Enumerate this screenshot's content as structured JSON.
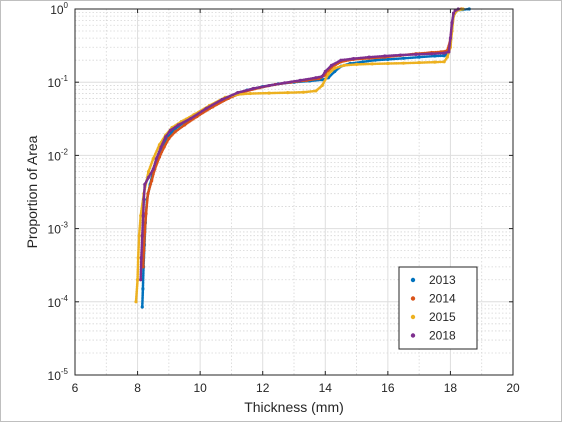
{
  "chart_data": {
    "type": "scatter",
    "title": "",
    "xlabel": "Thickness (mm)",
    "ylabel": "Proportion of Area",
    "xlim": [
      6,
      20
    ],
    "ylim": [
      1e-05,
      1
    ],
    "yscale": "log",
    "grid": true,
    "minor_grid": true,
    "legend_position": "lower-right",
    "x_ticks": [
      6,
      8,
      10,
      12,
      14,
      16,
      18,
      20
    ],
    "x_tick_labels": [
      "6",
      "8",
      "10",
      "12",
      "14",
      "16",
      "18",
      "20"
    ],
    "y_ticks": [
      1e-05,
      0.0001,
      0.001,
      0.01,
      0.1,
      1
    ],
    "y_tick_labels": [
      {
        "base": "10",
        "exp": "-5"
      },
      {
        "base": "10",
        "exp": "-4"
      },
      {
        "base": "10",
        "exp": "-3"
      },
      {
        "base": "10",
        "exp": "-2"
      },
      {
        "base": "10",
        "exp": "-1"
      },
      {
        "base": "10",
        "exp": "0"
      }
    ],
    "series": [
      {
        "name": "2013",
        "color": "#0072BD",
        "points": [
          [
            8.15,
            8.5e-05
          ],
          [
            8.17,
            0.00015
          ],
          [
            8.19,
            0.0003
          ],
          [
            8.22,
            0.0006
          ],
          [
            8.25,
            0.0012
          ],
          [
            8.3,
            0.0025
          ],
          [
            8.4,
            0.004
          ],
          [
            8.5,
            0.006
          ],
          [
            8.6,
            0.008
          ],
          [
            8.7,
            0.01
          ],
          [
            8.8,
            0.013
          ],
          [
            8.95,
            0.017
          ],
          [
            9.1,
            0.021
          ],
          [
            9.3,
            0.025
          ],
          [
            9.6,
            0.03
          ],
          [
            10.0,
            0.038
          ],
          [
            10.5,
            0.05
          ],
          [
            11.0,
            0.065
          ],
          [
            11.5,
            0.078
          ],
          [
            12.0,
            0.087
          ],
          [
            12.5,
            0.095
          ],
          [
            13.0,
            0.1
          ],
          [
            13.5,
            0.104
          ],
          [
            13.9,
            0.108
          ],
          [
            14.1,
            0.115
          ],
          [
            14.3,
            0.14
          ],
          [
            14.5,
            0.165
          ],
          [
            14.8,
            0.18
          ],
          [
            15.2,
            0.19
          ],
          [
            15.6,
            0.2
          ],
          [
            16.0,
            0.205
          ],
          [
            16.5,
            0.212
          ],
          [
            17.0,
            0.22
          ],
          [
            17.5,
            0.228
          ],
          [
            17.8,
            0.23
          ],
          [
            17.9,
            0.24
          ],
          [
            18.0,
            0.33
          ],
          [
            18.05,
            0.55
          ],
          [
            18.1,
            0.82
          ],
          [
            18.2,
            0.95
          ],
          [
            18.4,
            0.98
          ],
          [
            18.6,
            1.0
          ]
        ]
      },
      {
        "name": "2014",
        "color": "#D95319",
        "points": [
          [
            8.18,
            0.0003
          ],
          [
            8.2,
            0.0005
          ],
          [
            8.23,
            0.0009
          ],
          [
            8.27,
            0.0016
          ],
          [
            8.33,
            0.003
          ],
          [
            8.45,
            0.0045
          ],
          [
            8.55,
            0.0065
          ],
          [
            8.7,
            0.0095
          ],
          [
            8.85,
            0.013
          ],
          [
            9.0,
            0.017
          ],
          [
            9.2,
            0.021
          ],
          [
            9.5,
            0.026
          ],
          [
            9.9,
            0.034
          ],
          [
            10.4,
            0.046
          ],
          [
            10.9,
            0.06
          ],
          [
            11.4,
            0.074
          ],
          [
            11.9,
            0.084
          ],
          [
            12.4,
            0.093
          ],
          [
            12.9,
            0.1
          ],
          [
            13.4,
            0.106
          ],
          [
            13.8,
            0.112
          ],
          [
            14.0,
            0.125
          ],
          [
            14.2,
            0.16
          ],
          [
            14.5,
            0.19
          ],
          [
            14.9,
            0.205
          ],
          [
            15.4,
            0.212
          ],
          [
            15.9,
            0.22
          ],
          [
            16.4,
            0.232
          ],
          [
            16.9,
            0.245
          ],
          [
            17.4,
            0.255
          ],
          [
            17.7,
            0.26
          ],
          [
            17.9,
            0.27
          ],
          [
            18.0,
            0.38
          ],
          [
            18.05,
            0.6
          ],
          [
            18.1,
            0.85
          ],
          [
            18.2,
            0.96
          ],
          [
            18.35,
            1.0
          ]
        ]
      },
      {
        "name": "2015",
        "color": "#EDB120",
        "points": [
          [
            7.95,
            0.0001
          ],
          [
            8.0,
            0.0002
          ],
          [
            8.02,
            0.0004
          ],
          [
            8.05,
            0.0008
          ],
          [
            8.1,
            0.0015
          ],
          [
            8.2,
            0.003
          ],
          [
            8.35,
            0.006
          ],
          [
            8.5,
            0.009
          ],
          [
            8.7,
            0.014
          ],
          [
            8.9,
            0.019
          ],
          [
            9.1,
            0.024
          ],
          [
            9.4,
            0.029
          ],
          [
            9.8,
            0.036
          ],
          [
            10.3,
            0.048
          ],
          [
            10.8,
            0.062
          ],
          [
            11.2,
            0.068
          ],
          [
            11.6,
            0.07
          ],
          [
            12.2,
            0.071
          ],
          [
            12.8,
            0.072
          ],
          [
            13.3,
            0.073
          ],
          [
            13.7,
            0.076
          ],
          [
            13.9,
            0.09
          ],
          [
            14.1,
            0.13
          ],
          [
            14.3,
            0.155
          ],
          [
            14.6,
            0.17
          ],
          [
            15.0,
            0.175
          ],
          [
            15.5,
            0.178
          ],
          [
            16.0,
            0.18
          ],
          [
            16.5,
            0.182
          ],
          [
            17.0,
            0.185
          ],
          [
            17.5,
            0.188
          ],
          [
            17.8,
            0.19
          ],
          [
            17.9,
            0.22
          ],
          [
            18.0,
            0.3
          ],
          [
            18.05,
            0.5
          ],
          [
            18.1,
            0.8
          ],
          [
            18.2,
            0.95
          ],
          [
            18.4,
            1.0
          ]
        ]
      },
      {
        "name": "2018",
        "color": "#7E2F8E",
        "points": [
          [
            8.1,
            0.0002
          ],
          [
            8.12,
            0.0004
          ],
          [
            8.15,
            0.0008
          ],
          [
            8.18,
            0.0015
          ],
          [
            8.2,
            0.0025
          ],
          [
            8.23,
            0.004
          ],
          [
            8.35,
            0.005
          ],
          [
            8.5,
            0.0065
          ],
          [
            8.6,
            0.009
          ],
          [
            8.75,
            0.013
          ],
          [
            8.9,
            0.018
          ],
          [
            9.05,
            0.022
          ],
          [
            9.3,
            0.026
          ],
          [
            9.7,
            0.032
          ],
          [
            10.2,
            0.044
          ],
          [
            10.7,
            0.058
          ],
          [
            11.2,
            0.072
          ],
          [
            11.7,
            0.082
          ],
          [
            12.2,
            0.09
          ],
          [
            12.7,
            0.098
          ],
          [
            13.2,
            0.106
          ],
          [
            13.7,
            0.115
          ],
          [
            13.9,
            0.12
          ],
          [
            14.0,
            0.14
          ],
          [
            14.2,
            0.17
          ],
          [
            14.5,
            0.2
          ],
          [
            14.9,
            0.21
          ],
          [
            15.4,
            0.22
          ],
          [
            15.9,
            0.228
          ],
          [
            16.4,
            0.235
          ],
          [
            16.9,
            0.24
          ],
          [
            17.4,
            0.245
          ],
          [
            17.8,
            0.25
          ],
          [
            17.95,
            0.26
          ],
          [
            18.0,
            0.4
          ],
          [
            18.05,
            0.65
          ],
          [
            18.1,
            0.88
          ],
          [
            18.15,
            0.95
          ],
          [
            18.25,
            1.0
          ]
        ]
      }
    ]
  }
}
